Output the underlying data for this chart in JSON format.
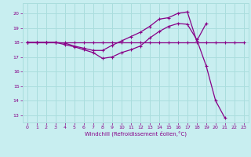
{
  "bg_color": "#c8eef0",
  "grid_color": "#aadddd",
  "line_color": "#880088",
  "xlabel": "Windchill (Refroidissement éolien,°C)",
  "xlim": [
    -0.5,
    23.5
  ],
  "ylim": [
    12.5,
    20.7
  ],
  "yticks": [
    13,
    14,
    15,
    16,
    17,
    18,
    19,
    20
  ],
  "xticks": [
    0,
    1,
    2,
    3,
    4,
    5,
    6,
    7,
    8,
    9,
    10,
    11,
    12,
    13,
    14,
    15,
    16,
    17,
    18,
    19,
    20,
    21,
    22,
    23
  ],
  "line1_x": [
    0,
    1,
    2,
    3,
    4,
    5,
    6,
    7,
    8,
    9,
    10,
    11,
    12,
    13,
    14,
    15,
    16,
    17,
    18,
    19,
    20,
    21,
    22,
    23
  ],
  "line1_y": [
    18,
    18,
    18,
    18,
    18,
    18,
    18,
    18,
    18,
    18,
    18,
    18,
    18,
    18,
    18,
    18,
    18,
    18,
    18,
    18,
    18,
    18,
    18,
    18
  ],
  "line2_x": [
    0,
    1,
    2,
    3,
    4,
    5,
    6,
    7,
    8,
    9,
    10,
    11,
    12,
    13,
    14,
    15,
    16,
    17,
    18,
    19,
    20,
    21,
    22,
    23
  ],
  "line2_y": [
    18,
    18,
    18,
    18,
    17.85,
    17.7,
    17.5,
    17.3,
    16.9,
    17.0,
    17.3,
    17.5,
    17.75,
    18.3,
    18.75,
    19.1,
    19.3,
    19.25,
    18.2,
    16.4,
    14.0,
    12.8,
    null,
    null
  ],
  "line3_x": [
    0,
    1,
    2,
    3,
    4,
    5,
    6,
    7,
    8,
    9,
    10,
    11,
    12,
    13,
    14,
    15,
    16,
    17,
    18,
    19,
    20,
    21,
    22,
    23
  ],
  "line3_y": [
    18,
    18,
    18,
    18,
    17.95,
    17.75,
    17.6,
    17.45,
    17.45,
    17.8,
    18.1,
    18.4,
    18.7,
    19.1,
    19.6,
    19.7,
    20.0,
    20.1,
    18.1,
    19.3,
    null,
    null,
    null,
    null
  ]
}
